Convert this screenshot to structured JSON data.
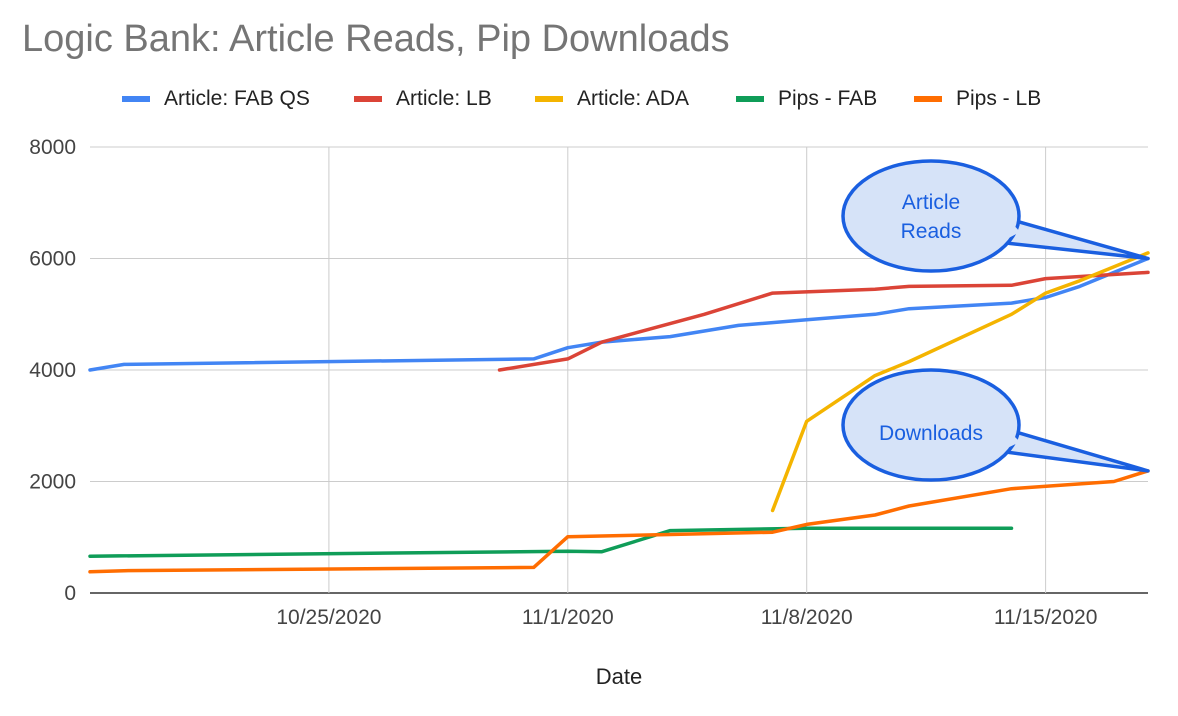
{
  "chart_data": {
    "type": "line",
    "title": "Logic Bank: Article Reads, Pip Downloads",
    "xlabel": "Date",
    "ylabel": "",
    "ylim": [
      0,
      8000
    ],
    "xlim": [
      "2020-10-18",
      "2020-11-18"
    ],
    "y_ticks": [
      0,
      2000,
      4000,
      6000,
      8000
    ],
    "y_tick_labels": [
      "0",
      "2000",
      "4000",
      "6000",
      "8000"
    ],
    "x_ticks": [
      "2020-10-25",
      "2020-11-01",
      "2020-11-08",
      "2020-11-15"
    ],
    "x_tick_labels": [
      "10/25/2020",
      "11/1/2020",
      "11/8/2020",
      "11/15/2020"
    ],
    "grid": true,
    "legend_position": "top",
    "series": [
      {
        "name": "Article: FAB QS",
        "color": "#4285f4",
        "points": [
          [
            "2020-10-18",
            4000
          ],
          [
            "2020-10-19",
            4100
          ],
          [
            "2020-10-31",
            4200
          ],
          [
            "2020-11-01",
            4400
          ],
          [
            "2020-11-02",
            4500
          ],
          [
            "2020-11-04",
            4600
          ],
          [
            "2020-11-06",
            4800
          ],
          [
            "2020-11-08",
            4900
          ],
          [
            "2020-11-10",
            5000
          ],
          [
            "2020-11-11",
            5100
          ],
          [
            "2020-11-14",
            5200
          ],
          [
            "2020-11-15",
            5300
          ],
          [
            "2020-11-16",
            5500
          ],
          [
            "2020-11-18",
            6000
          ]
        ]
      },
      {
        "name": "Article: LB",
        "color": "#db4437",
        "points": [
          [
            "2020-10-30",
            4000
          ],
          [
            "2020-11-01",
            4200
          ],
          [
            "2020-11-02",
            4500
          ],
          [
            "2020-11-05",
            5000
          ],
          [
            "2020-11-07",
            5380
          ],
          [
            "2020-11-10",
            5450
          ],
          [
            "2020-11-11",
            5500
          ],
          [
            "2020-11-14",
            5520
          ],
          [
            "2020-11-15",
            5640
          ],
          [
            "2020-11-18",
            5750
          ]
        ]
      },
      {
        "name": "Article: ADA",
        "color": "#f4b400",
        "points": [
          [
            "2020-11-07",
            1480
          ],
          [
            "2020-11-08",
            3080
          ],
          [
            "2020-11-10",
            3900
          ],
          [
            "2020-11-11",
            4150
          ],
          [
            "2020-11-14",
            5000
          ],
          [
            "2020-11-15",
            5380
          ],
          [
            "2020-11-16",
            5600
          ],
          [
            "2020-11-18",
            6100
          ]
        ]
      },
      {
        "name": "Pips - FAB",
        "color": "#0f9d58",
        "points": [
          [
            "2020-10-18",
            660
          ],
          [
            "2020-11-01",
            750
          ],
          [
            "2020-11-02",
            740
          ],
          [
            "2020-11-04",
            1120
          ],
          [
            "2020-11-08",
            1160
          ],
          [
            "2020-11-14",
            1160
          ]
        ]
      },
      {
        "name": "Pips - LB",
        "color": "#ff6d01",
        "points": [
          [
            "2020-10-18",
            380
          ],
          [
            "2020-10-19",
            400
          ],
          [
            "2020-10-31",
            460
          ],
          [
            "2020-11-01",
            1010
          ],
          [
            "2020-11-04",
            1050
          ],
          [
            "2020-11-07",
            1090
          ],
          [
            "2020-11-08",
            1230
          ],
          [
            "2020-11-10",
            1400
          ],
          [
            "2020-11-11",
            1560
          ],
          [
            "2020-11-14",
            1870
          ],
          [
            "2020-11-17",
            2000
          ],
          [
            "2020-11-18",
            2190
          ]
        ]
      }
    ],
    "annotations": [
      {
        "text_lines": [
          "Article",
          "Reads"
        ],
        "target": [
          "2020-11-18",
          6000
        ]
      },
      {
        "text_lines": [
          "Downloads"
        ],
        "target": [
          "2020-11-18",
          2190
        ]
      }
    ]
  }
}
